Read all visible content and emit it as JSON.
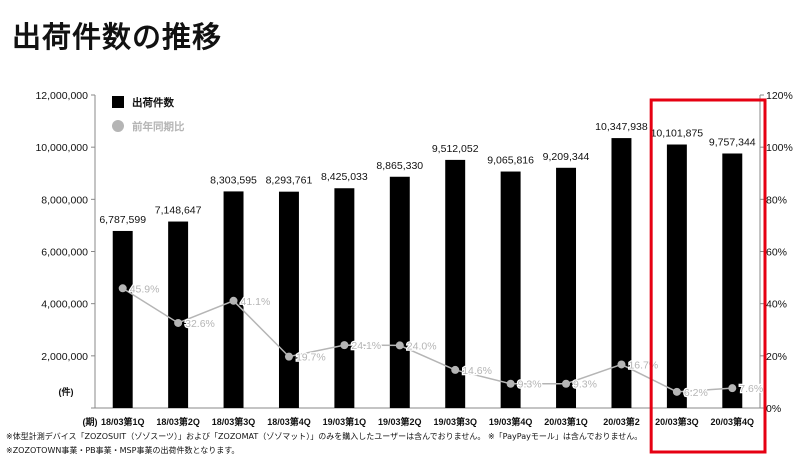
{
  "title": "出荷件数の推移",
  "chart_data": {
    "type": "bar",
    "categories": [
      "18/03第1Q",
      "18/03第2Q",
      "18/03第3Q",
      "18/03第4Q",
      "19/03第1Q",
      "19/03第2Q",
      "19/03第3Q",
      "19/03第4Q",
      "20/03第1Q",
      "20/03第2",
      "20/03第3Q",
      "20/03第4Q"
    ],
    "series": [
      {
        "name": "出荷件数",
        "type": "bar",
        "axis": "left",
        "color": "#000000",
        "values": [
          6787599,
          7148647,
          8303595,
          8293761,
          8425033,
          8865330,
          9512052,
          9065816,
          9209344,
          10347938,
          10101875,
          9757344
        ],
        "labels": [
          "6,787,599",
          "7,148,647",
          "8,303,595",
          "8,293,761",
          "8,425,033",
          "8,865,330",
          "9,512,052",
          "9,065,816",
          "9,209,344",
          "10,347,938",
          "10,101,875",
          "9,757,344"
        ]
      },
      {
        "name": "前年同期比",
        "type": "line",
        "axis": "right",
        "color": "#b5b5b5",
        "values": [
          45.9,
          32.6,
          41.1,
          19.7,
          24.1,
          24.0,
          14.6,
          9.3,
          9.3,
          16.7,
          6.2,
          7.6
        ],
        "labels": [
          "45.9%",
          "32.6%",
          "41.1%",
          "19.7%",
          "24.1%",
          "24.0%",
          "14.6%",
          "9.3%",
          "9.3%",
          "16.7%",
          "6.2%",
          "7.6%"
        ]
      }
    ],
    "yaxis_left": {
      "range": [
        0,
        12000000
      ],
      "ticks": [
        0,
        2000000,
        4000000,
        6000000,
        8000000,
        10000000,
        12000000
      ],
      "tick_labels": [
        "",
        "2,000,000",
        "4,000,000",
        "6,000,000",
        "8,000,000",
        "10,000,000",
        "12,000,000"
      ],
      "unit_label": "(件)"
    },
    "yaxis_right": {
      "range": [
        0,
        120
      ],
      "ticks": [
        0,
        20,
        40,
        60,
        80,
        100,
        120
      ],
      "tick_labels": [
        "0%",
        "20%",
        "40%",
        "60%",
        "80%",
        "100%",
        "120%"
      ]
    },
    "xaxis_unit_label": "(期)",
    "legend_placement": "top-left",
    "grid": false,
    "highlight": {
      "categories": [
        "20/03第3Q",
        "20/03第4Q"
      ],
      "color": "#e60012"
    }
  },
  "footnotes": [
    "※体型計測デバイス「ZOZOSUIT（ゾゾスーツ）」および「ZOZOMAT（ゾゾマット）」のみを購入したユーザーは含んでおりません。 ※「PayPayモール」は含んでおりません。",
    "※ZOZOTOWN事業・PB事業・MSP事業の出荷件数となります。"
  ]
}
